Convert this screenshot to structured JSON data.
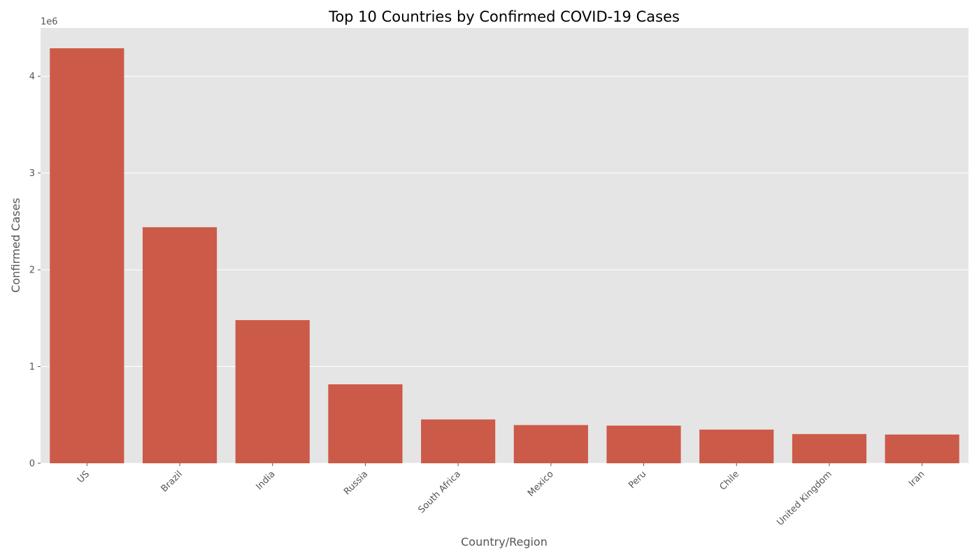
{
  "chart_data": {
    "type": "bar",
    "title": "Top 10 Countries by Confirmed COVID-19 Cases",
    "xlabel": "Country/Region",
    "ylabel": "Confirmed Cases",
    "y_offset_label": "1e6",
    "categories": [
      "US",
      "Brazil",
      "India",
      "Russia",
      "South Africa",
      "Mexico",
      "Peru",
      "Chile",
      "United Kingdom",
      "Iran"
    ],
    "values": [
      4290000,
      2440000,
      1480000,
      816000,
      453000,
      395000,
      389000,
      348000,
      302000,
      297000
    ],
    "ylim": [
      0,
      4500000
    ],
    "yticks": [
      0,
      1000000,
      2000000,
      3000000,
      4000000
    ],
    "ytick_labels": [
      "0",
      "1",
      "2",
      "3",
      "4"
    ],
    "grid": true,
    "colors": {
      "bar": "#cc5a48",
      "plot_background": "#e5e5e5",
      "grid": "#ffffff",
      "tick": "#555555"
    }
  }
}
